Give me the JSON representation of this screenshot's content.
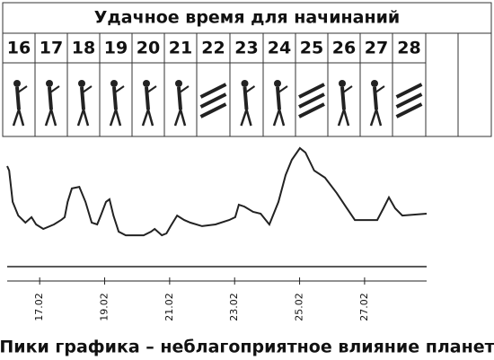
{
  "title": "Удачное время для начинаний",
  "days": [
    "16",
    "17",
    "18",
    "19",
    "20",
    "21",
    "22",
    "23",
    "24",
    "25",
    "26",
    "27",
    "28"
  ],
  "chart_data": {
    "type": "line",
    "x": [
      16.0,
      16.06,
      16.17,
      16.34,
      16.56,
      16.75,
      16.89,
      17.11,
      17.44,
      17.66,
      17.77,
      17.86,
      17.99,
      18.22,
      18.41,
      18.6,
      18.77,
      18.88,
      19.04,
      19.15,
      19.27,
      19.43,
      19.65,
      20.2,
      20.43,
      20.54,
      20.76,
      20.9,
      21.03,
      21.23,
      21.45,
      21.64,
      22.0,
      22.41,
      22.83,
      23.02,
      23.13,
      23.3,
      23.57,
      23.8,
      23.96,
      24.07,
      24.35,
      24.57,
      24.76,
      25.01,
      25.18,
      25.45,
      25.78,
      26.14,
      26.42,
      26.7,
      27.39,
      27.58,
      27.75,
      27.94,
      28.16,
      28.91
    ],
    "values": [
      81.5,
      77.8,
      51.9,
      40.7,
      34.8,
      39.3,
      33.3,
      29.6,
      33.3,
      37,
      39.3,
      51.9,
      63,
      64.4,
      51.9,
      34.8,
      33.3,
      40.7,
      51.9,
      54.1,
      40.7,
      27.4,
      24.4,
      24.4,
      27.4,
      29.6,
      24.4,
      25.9,
      31.9,
      40.7,
      37,
      34.8,
      31.9,
      33.3,
      37,
      39.3,
      49.6,
      48.1,
      43.7,
      42.2,
      37,
      33.3,
      51.9,
      74.1,
      86.7,
      96.3,
      92.6,
      77.8,
      71.9,
      59.3,
      48.1,
      37,
      37,
      46.7,
      55.6,
      46.7,
      40.7,
      42.2
    ],
    "color": "#222222",
    "xlim": [
      16.0,
      28.91
    ],
    "ylim": [
      0,
      100
    ],
    "xticks": [
      {
        "value": 17,
        "label": "17.02"
      },
      {
        "value": 19,
        "label": "19.02"
      },
      {
        "value": 21,
        "label": "21.02"
      },
      {
        "value": 23,
        "label": "23.02"
      },
      {
        "value": 25,
        "label": "25.02"
      },
      {
        "value": 27,
        "label": "27.02"
      }
    ],
    "caption": "Пики графика – неблагоприятное влияние планет"
  }
}
